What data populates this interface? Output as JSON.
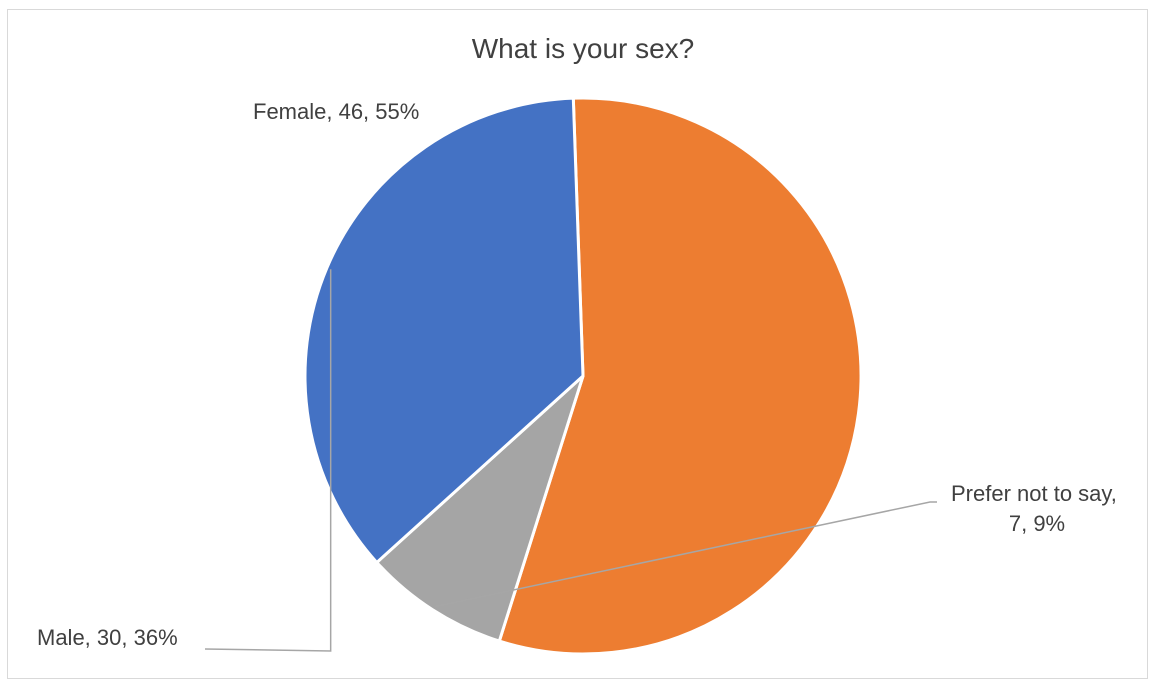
{
  "chart_data": {
    "type": "pie",
    "title": "What is your sex?",
    "slices": [
      {
        "category": "Female",
        "value": 46,
        "percent": "55%",
        "label_line1": "Female, 46, 55%",
        "label_line2": "",
        "color": "#ED7D31"
      },
      {
        "category": "Prefer not to say",
        "value": 7,
        "percent": "9%",
        "label_line1": "Prefer not to say,",
        "label_line2": "7, 9%",
        "color": "#A5A5A5"
      },
      {
        "category": "Male",
        "value": 30,
        "percent": "36%",
        "label_line1": "Male, 30, 36%",
        "label_line2": "",
        "color": "#4472C4"
      }
    ],
    "colors": {
      "border": "#d9d9d9",
      "text": "#404040",
      "leader_line": "#a6a6a6",
      "slice_outline": "#ffffff"
    }
  }
}
